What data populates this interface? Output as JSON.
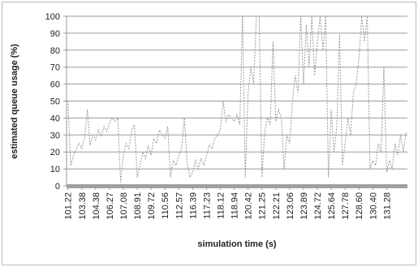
{
  "chart_data": {
    "type": "line",
    "xlabel": "simulation time (s)",
    "ylabel": "estimated queue usage (%)",
    "categories": [
      "101.22",
      null,
      null,
      null,
      null,
      "103.38",
      null,
      null,
      null,
      null,
      "104.38",
      null,
      null,
      null,
      null,
      "106.27",
      null,
      null,
      null,
      null,
      "107.08",
      null,
      null,
      null,
      null,
      "108.91",
      null,
      null,
      null,
      null,
      "109.72",
      null,
      null,
      null,
      null,
      "110.56",
      null,
      null,
      null,
      null,
      "112.57",
      null,
      null,
      null,
      null,
      "116.39",
      null,
      null,
      null,
      null,
      "117.23",
      null,
      null,
      null,
      null,
      "118.12",
      null,
      null,
      null,
      null,
      "118.94",
      null,
      null,
      null,
      null,
      "120.42",
      null,
      null,
      null,
      null,
      "121.25",
      null,
      null,
      null,
      null,
      "122.21",
      null,
      null,
      null,
      null,
      "123.06",
      null,
      null,
      null,
      null,
      "123.89",
      null,
      null,
      null,
      null,
      "124.72",
      null,
      null,
      null,
      null,
      "125.64",
      null,
      null,
      null,
      null,
      "127.78",
      null,
      null,
      null,
      null,
      "128.60",
      null,
      null,
      null,
      null,
      "130.40",
      null,
      null,
      null,
      null,
      "131.28",
      null,
      null,
      null,
      null,
      null,
      null,
      null
    ],
    "series": [
      {
        "color": "#9a9a9a",
        "values": [
          50,
          12,
          18,
          22,
          25,
          22,
          28,
          45,
          24,
          30,
          27,
          33,
          29,
          35,
          32,
          37,
          40,
          38,
          40,
          2,
          18,
          25,
          22,
          33,
          36,
          5,
          12,
          20,
          16,
          24,
          18,
          28,
          25,
          33,
          30,
          28,
          35,
          5,
          15,
          12,
          18,
          22,
          40,
          14,
          5,
          8,
          15,
          10,
          16,
          12,
          18,
          24,
          22,
          28,
          30,
          33,
          50,
          38,
          42,
          40,
          38,
          42,
          36,
          100,
          5,
          55,
          70,
          60,
          100,
          100,
          5,
          32,
          40,
          36,
          85,
          38,
          45,
          40,
          10,
          30,
          25,
          50,
          65,
          55,
          100,
          60,
          95,
          70,
          100,
          65,
          85,
          100,
          80,
          100,
          5,
          45,
          20,
          35,
          90,
          12,
          25,
          40,
          30,
          55,
          60,
          75,
          100,
          85,
          100,
          10,
          15,
          12,
          25,
          20,
          70,
          8,
          15,
          10,
          25,
          18,
          30,
          20,
          32
        ]
      }
    ],
    "ylim": [
      0,
      100
    ],
    "yticks": [
      0,
      10,
      20,
      30,
      40,
      50,
      60,
      70,
      80,
      90,
      100
    ],
    "grid": true
  }
}
